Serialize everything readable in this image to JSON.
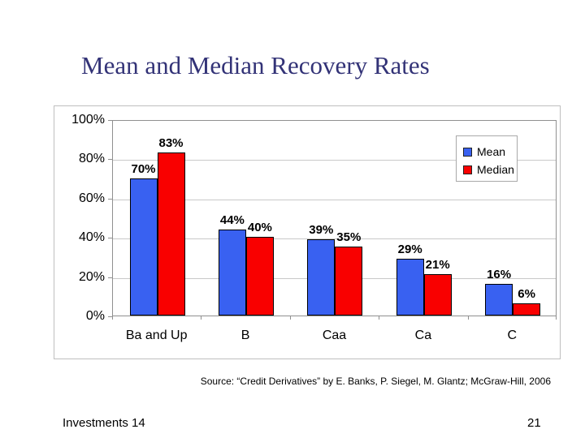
{
  "slide": {
    "title": "Mean and Median Recovery Rates",
    "source": "Source: “Credit Derivatives” by E. Banks, P. Siegel, M. Glantz; McGraw-Hill, 2006",
    "footer_left": "Investments 14",
    "page_number": "21"
  },
  "chart_data": {
    "type": "bar",
    "title": "",
    "xlabel": "",
    "ylabel": "",
    "categories": [
      "Ba and Up",
      "B",
      "Caa",
      "Ca",
      "C"
    ],
    "series": [
      {
        "name": "Mean",
        "color": "#3961F1",
        "values": [
          70,
          44,
          39,
          29,
          16
        ]
      },
      {
        "name": "Median",
        "color": "#F90000",
        "values": [
          83,
          40,
          35,
          21,
          6
        ]
      }
    ],
    "data_label_format": "{v}%",
    "y_ticks": [
      100,
      80,
      60,
      40,
      20,
      0
    ],
    "y_tick_suffix": "%",
    "ylim": [
      0,
      100
    ],
    "grid": true,
    "legend_position": "inside-upper-right"
  },
  "colors": {
    "title": "#333377",
    "axis": "#909090",
    "gridline": "#C9C9C9",
    "chart_border": "#BFBFBF",
    "bar_border": "#000000",
    "text": "#000000"
  }
}
